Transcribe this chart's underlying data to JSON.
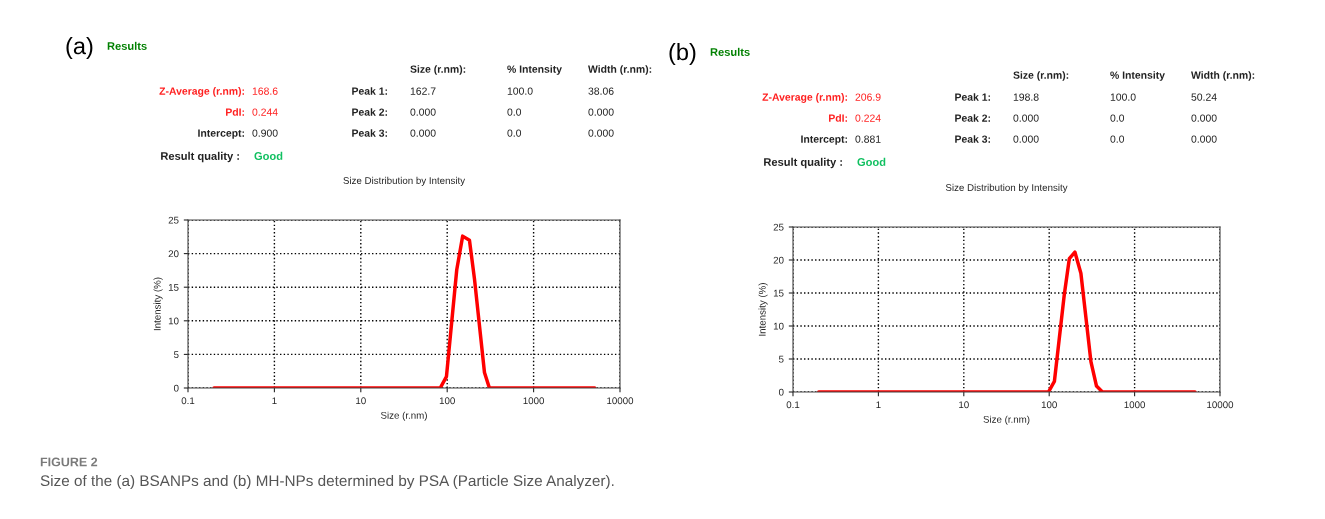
{
  "chart_data": [
    {
      "type": "line",
      "title": "Size Distribution by Intensity",
      "xlabel": "Size (r.nm)",
      "ylabel": "Intensity (%)",
      "log": "x",
      "xlim": [
        0.1,
        10000
      ],
      "xticks": [
        0.1,
        1,
        10,
        100,
        1000,
        10000
      ],
      "ylim": [
        0,
        25
      ],
      "yticks": [
        0,
        5,
        10,
        15,
        20,
        25
      ],
      "grid": true,
      "marker": "none",
      "line_style": "solid",
      "series": [
        {
          "color": "#ff0000",
          "x": [
            0.2,
            83,
            98,
            129,
            151,
            181,
            207,
            270,
            308,
            5100
          ],
          "values": [
            0,
            0,
            1.7,
            17.6,
            22.6,
            22.0,
            16.2,
            2.3,
            0,
            0
          ]
        }
      ],
      "annotations": [
        "(a)",
        "Results",
        "Size (r.nm):",
        "% Intensity",
        "Width (r.nm):",
        "Z-Average (r.nm):",
        "168.6",
        "PdI:",
        "0.244",
        "Intercept:",
        "0.900",
        "Result quality :",
        "Good",
        "Peak 1:",
        "162.7",
        "100.0",
        "38.06",
        "Peak 2:",
        "0.000",
        "0.0",
        "0.000",
        "Peak 3:",
        "0.000",
        "0.0",
        "0.000",
        "FIGURE 2",
        "Size of the (a) BSANPs and (b) MH-NPs determined by PSA (Particle Size Analyzer)."
      ]
    },
    {
      "type": "line",
      "title": "Size Distribution by Intensity",
      "xlabel": "Size (r.nm)",
      "ylabel": "Intensity (%)",
      "log": "x",
      "xlim": [
        0.1,
        10000
      ],
      "xticks": [
        0.1,
        1,
        10,
        100,
        1000,
        10000
      ],
      "ylim": [
        0,
        25
      ],
      "yticks": [
        0,
        5,
        10,
        15,
        20,
        25
      ],
      "grid": true,
      "marker": "none",
      "line_style": "solid",
      "series": [
        {
          "color": "#ff0000",
          "x": [
            0.2,
            98,
            115,
            150,
            172,
            200,
            235,
            308,
            358,
            421,
            5100
          ],
          "values": [
            0,
            0,
            1.6,
            14.7,
            20.2,
            21.2,
            18.0,
            4.6,
            0.9,
            0,
            0
          ]
        }
      ],
      "annotations": [
        "(b)",
        "Results",
        "Size (r.nm):",
        "% Intensity",
        "Width (r.nm):",
        "Z-Average (r.nm):",
        "206.9",
        "PdI:",
        "0.224",
        "Intercept:",
        "0.881",
        "Result quality :",
        "Good",
        "Peak 1:",
        "198.8",
        "100.0",
        "50.24",
        "Peak 2:",
        "0.000",
        "0.0",
        "0.000",
        "Peak 3:",
        "0.000",
        "0.0",
        "0.000"
      ]
    }
  ]
}
